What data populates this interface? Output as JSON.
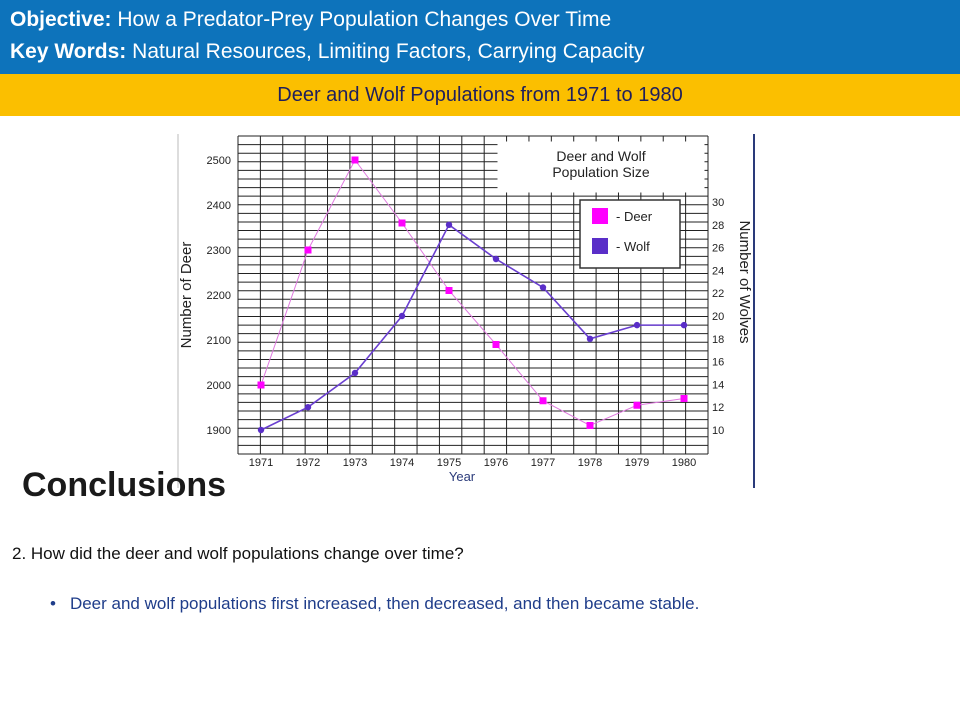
{
  "header": {
    "objective_label": "Objective:",
    "objective_text": " How a Predator-Prey Population Changes Over Time",
    "keywords_label": "Key Words:",
    "keywords_text": " Natural Resources, Limiting Factors, Carrying Capacity"
  },
  "subtitle": "Deer and Wolf Populations from 1971 to 1980",
  "conclusions_title": "Conclusions",
  "question": "2.  How did the deer and wolf populations change over time?",
  "answer_bullet": "•",
  "answer": "Deer and wolf populations first increased, then decreased, and then became stable.",
  "colors": {
    "header_bg": "#0d73bb",
    "subbar_bg": "#fbbf00",
    "deer": "#ff00ff",
    "wolf": "#5a2ec8"
  },
  "chart_data": {
    "type": "line",
    "title": "Deer and Wolf\nPopulation Size",
    "title_lines": [
      "Deer and Wolf",
      "Population Size"
    ],
    "xlabel": "Year",
    "ylabel": "Number of Deer",
    "y2label": "Number of Wolves",
    "x": [
      1971,
      1972,
      1973,
      1974,
      1975,
      1976,
      1977,
      1978,
      1979,
      1980
    ],
    "ylim": [
      1900,
      2500
    ],
    "y2lim": [
      10,
      30
    ],
    "y_ticks": [
      1900,
      2000,
      2100,
      2200,
      2300,
      2400,
      2500
    ],
    "y2_ticks": [
      10,
      12,
      14,
      16,
      18,
      20,
      22,
      24,
      26,
      28,
      30
    ],
    "grid": true,
    "legend_position": "top-right",
    "series": [
      {
        "name": "- Deer",
        "axis": "left",
        "values": [
          2000,
          2300,
          2500,
          2360,
          2210,
          2090,
          1965,
          1910,
          1955,
          1970
        ]
      },
      {
        "name": "- Wolf",
        "axis": "right",
        "values": [
          10,
          12,
          15,
          20,
          28,
          25,
          22.5,
          18,
          19.2,
          19.2
        ]
      }
    ]
  }
}
